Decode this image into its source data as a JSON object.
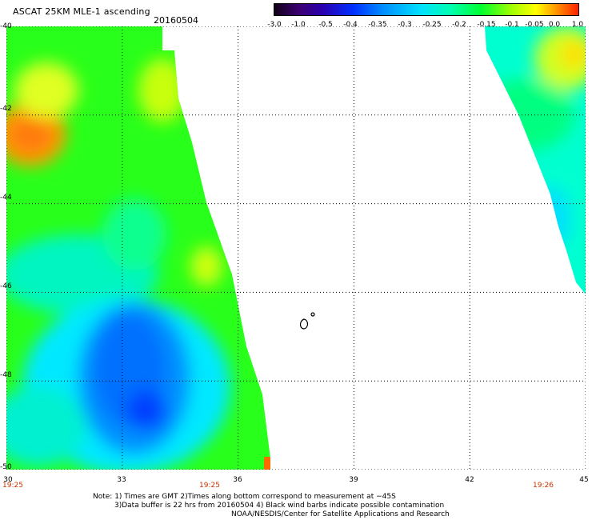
{
  "header": {
    "title": "ASCAT 25KM MLE-1 ascending",
    "date": "20160504"
  },
  "colorbar": {
    "labels": [
      "-3.0",
      "-1.0",
      "-0.5",
      "-0.4",
      "-0.35",
      "-0.3",
      "-0.25",
      "-0.2",
      "-0.15",
      "-0.1",
      "-0.05",
      "0.0",
      "1.0"
    ]
  },
  "axes": {
    "lat_labels": [
      "-40",
      "-42",
      "-44",
      "-46",
      "-48",
      "-50"
    ],
    "lon_labels": [
      "30",
      "33",
      "36",
      "39",
      "42",
      "45"
    ],
    "time_labels": [
      "19:25",
      "19:25",
      "19:26"
    ]
  },
  "notes": {
    "line1": "Note: 1) Times are GMT 2)Times along bottom correspond to measurement at −45S",
    "line2": "3)Data buffer is 22 hrs from 20160504 4) Black wind barbs indicate possible contamination",
    "line3": "NOAA/NESDIS/Center for Satellite Applications and Research"
  },
  "colors": {
    "grid": "#000000",
    "time_text": "#c83200",
    "background": "#ffffff"
  }
}
